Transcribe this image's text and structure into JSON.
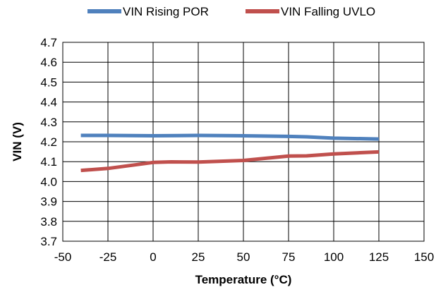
{
  "chart_data": {
    "type": "line",
    "title": "",
    "xlabel": "Temperature (°C)",
    "ylabel": "VIN (V)",
    "xlim": [
      -50,
      150
    ],
    "ylim": [
      3.7,
      4.7
    ],
    "x_ticks": [
      "-50",
      "-25",
      "0",
      "25",
      "50",
      "75",
      "100",
      "125",
      "150"
    ],
    "y_ticks": [
      "4.7",
      "4.6",
      "4.5",
      "4.4",
      "4.3",
      "4.2",
      "4.1",
      "4.0",
      "3.9",
      "3.8",
      "3.7"
    ],
    "grid": true,
    "legend_position": "top",
    "series": [
      {
        "name": "VIN Rising POR",
        "color": "#4f81bd",
        "x": [
          -40,
          -25,
          0,
          25,
          50,
          75,
          85,
          100,
          125
        ],
        "y": [
          4.232,
          4.232,
          4.23,
          4.232,
          4.23,
          4.227,
          4.225,
          4.218,
          4.214
        ]
      },
      {
        "name": "VIN Falling UVLO",
        "color": "#c0504d",
        "x": [
          -40,
          -25,
          0,
          10,
          25,
          50,
          75,
          85,
          100,
          125
        ],
        "y": [
          4.056,
          4.066,
          4.096,
          4.099,
          4.098,
          4.106,
          4.128,
          4.129,
          4.139,
          4.149
        ]
      }
    ]
  }
}
